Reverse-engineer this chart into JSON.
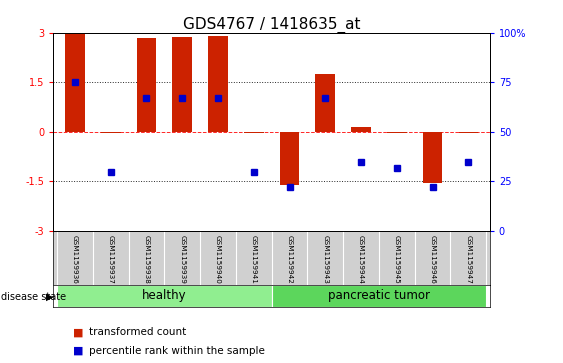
{
  "title": "GDS4767 / 1418635_at",
  "samples": [
    "GSM1159936",
    "GSM1159937",
    "GSM1159938",
    "GSM1159939",
    "GSM1159940",
    "GSM1159941",
    "GSM1159942",
    "GSM1159943",
    "GSM1159944",
    "GSM1159945",
    "GSM1159946",
    "GSM1159947"
  ],
  "transformed_count": [
    3.0,
    -0.05,
    2.85,
    2.87,
    2.9,
    -0.05,
    -1.6,
    1.75,
    0.15,
    -0.05,
    -1.55,
    -0.05
  ],
  "percentile_rank_raw": [
    75,
    30,
    67,
    67,
    67,
    30,
    22,
    67,
    35,
    32,
    22,
    35
  ],
  "groups": [
    {
      "label": "healthy",
      "indices": [
        0,
        1,
        2,
        3,
        4,
        5
      ],
      "color": "#90EE90"
    },
    {
      "label": "pancreatic tumor",
      "indices": [
        6,
        7,
        8,
        9,
        10,
        11
      ],
      "color": "#5CD65C"
    }
  ],
  "bar_color": "#CC2200",
  "dot_color": "#0000CC",
  "ylim_left": [
    -3,
    3
  ],
  "ylim_right": [
    0,
    100
  ],
  "yticks_left": [
    -3,
    -1.5,
    0,
    1.5,
    3
  ],
  "yticks_right": [
    0,
    25,
    50,
    75,
    100
  ],
  "hlines": [
    1.5,
    0,
    -1.5
  ],
  "hline_styles": [
    "dotted",
    "dashed",
    "dotted"
  ],
  "hline_colors": [
    "black",
    "red",
    "black"
  ],
  "background_color": "#ffffff",
  "label_row_color": "#d0d0d0",
  "title_fontsize": 11,
  "tick_fontsize": 7,
  "label_fontsize": 5.2,
  "group_label_fontsize": 8.5,
  "legend_fontsize": 7.5
}
